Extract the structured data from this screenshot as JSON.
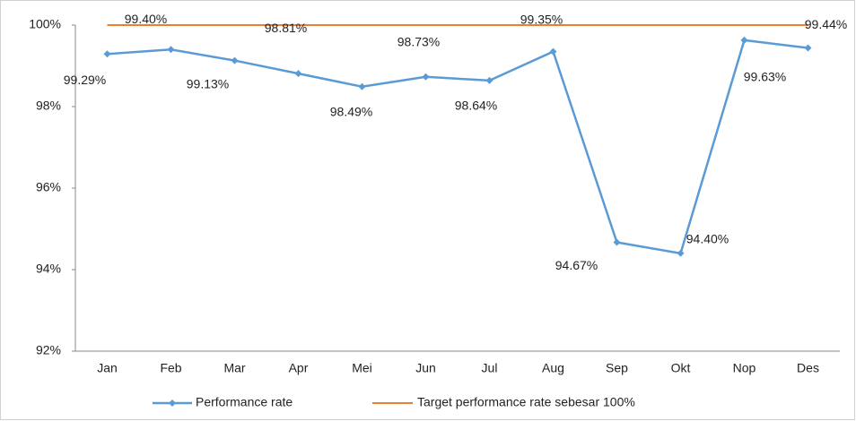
{
  "chart_data": {
    "type": "line",
    "categories": [
      "Jan",
      "Feb",
      "Mar",
      "Apr",
      "Mei",
      "Jun",
      "Jul",
      "Aug",
      "Sep",
      "Okt",
      "Nop",
      "Des"
    ],
    "series": [
      {
        "name": "Performance rate",
        "color": "#5b9bd5",
        "values": [
          99.29,
          99.4,
          99.13,
          98.81,
          98.49,
          98.73,
          98.64,
          99.35,
          94.67,
          94.4,
          99.63,
          99.44
        ],
        "value_labels": [
          "99.29%",
          "99.40%",
          "99.13%",
          "98.81%",
          "98.49%",
          "98.73%",
          "98.64%",
          "99.35%",
          "94.67%",
          "94.40%",
          "99.63%",
          "99.44%"
        ]
      },
      {
        "name": "Target performance rate sebesar 100%",
        "color": "#ed7d31",
        "values": [
          100,
          100,
          100,
          100,
          100,
          100,
          100,
          100,
          100,
          100,
          100,
          100
        ]
      }
    ],
    "ylim": [
      92,
      100
    ],
    "yticks": [
      {
        "value": 92,
        "label": "92%"
      },
      {
        "value": 94,
        "label": "94%"
      },
      {
        "value": 96,
        "label": "96%"
      },
      {
        "value": 98,
        "label": "98%"
      },
      {
        "value": 100,
        "label": "100%"
      }
    ],
    "legend": "bottom"
  }
}
